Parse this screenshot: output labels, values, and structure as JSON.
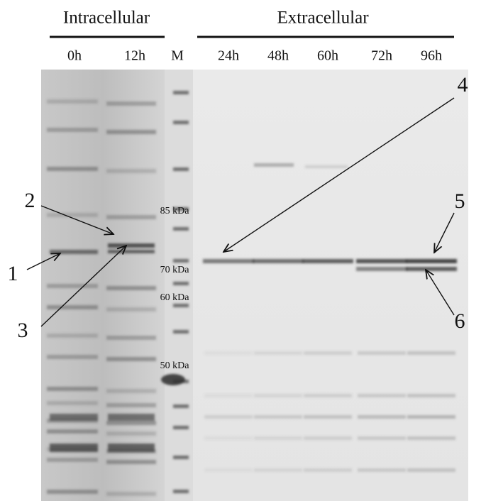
{
  "header": {
    "left": "Intracellular",
    "right": "Extracellular"
  },
  "lanes": [
    "0h",
    "12h",
    "M",
    "24h",
    "48h",
    "60h",
    "72h",
    "96h"
  ],
  "markers": [
    "85 kDa",
    "70 kDa",
    "60 kDa",
    "50 kDa"
  ],
  "arrows": [
    "1",
    "2",
    "3",
    "4",
    "5",
    "6"
  ]
}
